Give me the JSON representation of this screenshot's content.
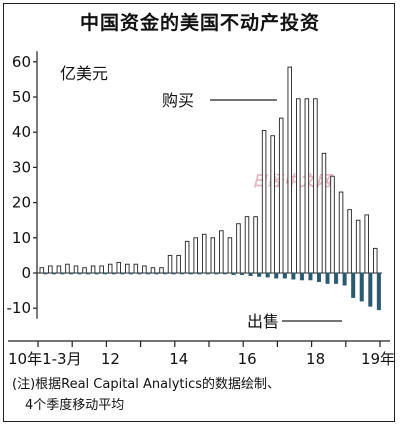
{
  "chart_data": {
    "type": "bar",
    "title": "中国资金的美国不动产投资",
    "unit_label": "亿美元",
    "ylim": [
      -13,
      63
    ],
    "y_ticks": [
      60,
      50,
      40,
      30,
      20,
      10,
      0,
      -10
    ],
    "y_tick_labels": [
      "60",
      "50",
      "40",
      "30",
      "20",
      "10",
      "0",
      "-10"
    ],
    "x_tick_labels": [
      "10年1-3月",
      "12",
      "14",
      "16",
      "18",
      "19年"
    ],
    "grid": false,
    "legend": "none",
    "series": [
      {
        "name": "购买",
        "values": [
          1.5,
          2,
          2,
          2.5,
          2,
          1.5,
          2,
          2,
          2.5,
          3,
          2.5,
          2.5,
          2,
          1.5,
          1.5,
          5,
          5,
          9,
          10,
          11,
          10,
          12,
          10,
          14,
          16,
          16,
          40.5,
          39,
          44,
          58.5,
          49.5,
          49.5,
          49.5,
          34,
          27.5,
          23,
          18,
          15,
          16.5,
          7
        ]
      },
      {
        "name": "出售",
        "values": [
          -0.3,
          -0.3,
          -0.3,
          -0.3,
          -0.3,
          -0.3,
          -0.3,
          -0.3,
          -0.3,
          -0.3,
          -0.3,
          -0.3,
          -0.3,
          -0.3,
          -0.3,
          -0.3,
          -0.3,
          -0.3,
          -0.3,
          -0.3,
          -0.3,
          -0.3,
          -0.5,
          -0.5,
          -0.8,
          -1,
          -1.2,
          -1.5,
          -1.5,
          -1.8,
          -2,
          -2,
          -2.5,
          -3,
          -3,
          -3.5,
          -7,
          -8,
          -9.5,
          -10.5
        ]
      }
    ],
    "annotations": [
      "购买",
      "出售"
    ]
  },
  "note": "(注)根据Real Capital Analytics的数据绘制、\n　4个季度移动平均",
  "watermark": "日经中文网",
  "colors": {
    "buy_bar": "#ffffff",
    "sell_bar": "#2b5a70",
    "axis": "#222222"
  }
}
